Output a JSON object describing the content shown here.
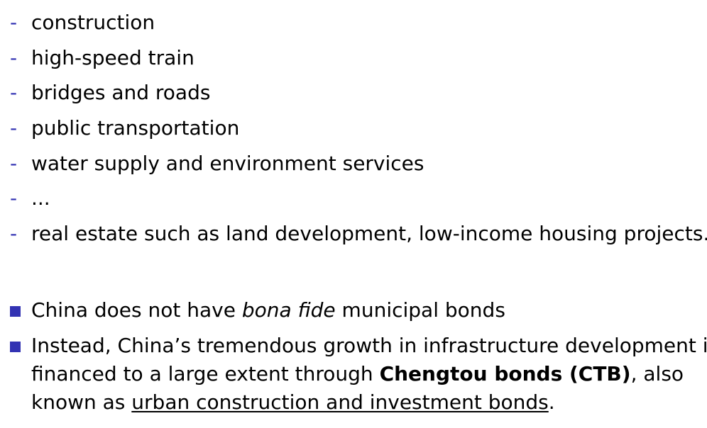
{
  "dash_list": {
    "marker": "-",
    "items": [
      "construction",
      "high-speed train",
      "bridges and roads",
      "public transportation",
      "water supply and environment services",
      "...",
      "real estate such as land development, low-income housing projects."
    ]
  },
  "bullets": {
    "marker_color": "#3333b3",
    "b1": {
      "pre": "China does not have ",
      "em": "bona fide",
      "post": " municipal bonds"
    },
    "b2": {
      "line1": "Instead, China’s tremendous growth in infrastructure development is",
      "pre": "financed to a large extent through ",
      "strong": "Chengtou bonds (CTB)",
      "post": ", also",
      "line3_pre": "known as ",
      "underlined": "urban construction and investment bonds",
      "line3_post": "."
    }
  }
}
